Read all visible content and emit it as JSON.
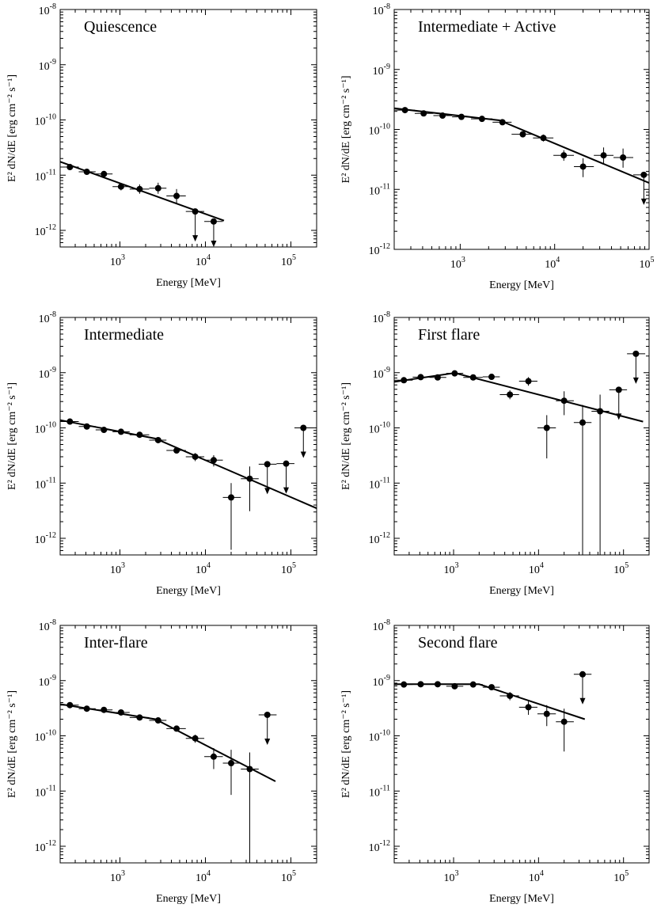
{
  "chart_data": [
    {
      "type": "scatter",
      "title": "Quiescence",
      "xlabel": "Energy [MeV]",
      "ylabel": "E² dN/dE [erg cm⁻² s⁻¹]",
      "xscale": "log",
      "yscale": "log",
      "xlim": [
        200,
        200000
      ],
      "ylim": [
        5e-13,
        1e-08
      ],
      "x_ticks": [
        {
          "base": "10",
          "exp": "3"
        },
        {
          "base": "10",
          "exp": "4"
        },
        {
          "base": "10",
          "exp": "5"
        }
      ],
      "y_ticks": [
        {
          "base": "10",
          "exp": "-12"
        },
        {
          "base": "10",
          "exp": "-11"
        },
        {
          "base": "10",
          "exp": "-10"
        },
        {
          "base": "10",
          "exp": "-9"
        },
        {
          "base": "10",
          "exp": "-8"
        }
      ],
      "points": [
        {
          "x": 260,
          "y": 1.4e-11,
          "xlo": 200,
          "xhi": 330,
          "ylo": 1.25e-11,
          "yhi": 1.55e-11,
          "ul": false
        },
        {
          "x": 410,
          "y": 1.15e-11,
          "xlo": 330,
          "xhi": 520,
          "ylo": 1.05e-11,
          "yhi": 1.25e-11,
          "ul": false
        },
        {
          "x": 650,
          "y": 1.05e-11,
          "xlo": 520,
          "xhi": 820,
          "ylo": 9.5e-12,
          "yhi": 1.15e-11,
          "ul": false
        },
        {
          "x": 1030,
          "y": 6.2e-12,
          "xlo": 820,
          "xhi": 1300,
          "ylo": 5.3e-12,
          "yhi": 7.2e-12,
          "ul": false
        },
        {
          "x": 1700,
          "y": 5.6e-12,
          "xlo": 1300,
          "xhi": 2200,
          "ylo": 4.6e-12,
          "yhi": 6.8e-12,
          "ul": false
        },
        {
          "x": 2800,
          "y": 5.8e-12,
          "xlo": 2200,
          "xhi": 3500,
          "ylo": 4.6e-12,
          "yhi": 7.3e-12,
          "ul": false
        },
        {
          "x": 4600,
          "y": 4.2e-12,
          "xlo": 3500,
          "xhi": 5900,
          "ylo": 3.1e-12,
          "yhi": 5.6e-12,
          "ul": false
        },
        {
          "x": 7600,
          "y": 2.2e-12,
          "xlo": 5900,
          "xhi": 9700,
          "ul": true
        },
        {
          "x": 12500,
          "y": 1.45e-12,
          "xlo": 9700,
          "xhi": 16000,
          "ul": true
        }
      ],
      "model": [
        [
          200,
          1.75e-11
        ],
        [
          16500,
          1.5e-12
        ]
      ]
    },
    {
      "type": "scatter",
      "title": "Intermediate + Active",
      "xlabel": "Energy [MeV]",
      "ylabel": "E² dN/dE [erg cm⁻² s⁻¹]",
      "xscale": "log",
      "yscale": "log",
      "xlim": [
        200,
        100000
      ],
      "ylim": [
        1e-12,
        1e-08
      ],
      "x_ticks": [
        {
          "base": "10",
          "exp": "3"
        },
        {
          "base": "10",
          "exp": "4"
        },
        {
          "base": "10",
          "exp": "5"
        }
      ],
      "y_ticks": [
        {
          "base": "10",
          "exp": "-12"
        },
        {
          "base": "10",
          "exp": "-11"
        },
        {
          "base": "10",
          "exp": "-10"
        },
        {
          "base": "10",
          "exp": "-9"
        },
        {
          "base": "10",
          "exp": "-8"
        }
      ],
      "points": [
        {
          "x": 260,
          "y": 2.1e-10,
          "xlo": 200,
          "xhi": 330,
          "ylo": 2e-10,
          "yhi": 2.2e-10,
          "ul": false
        },
        {
          "x": 410,
          "y": 1.85e-10,
          "xlo": 330,
          "xhi": 520,
          "ylo": 1.75e-10,
          "yhi": 1.95e-10,
          "ul": false
        },
        {
          "x": 650,
          "y": 1.7e-10,
          "xlo": 520,
          "xhi": 820,
          "ylo": 1.6e-10,
          "yhi": 1.8e-10,
          "ul": false
        },
        {
          "x": 1030,
          "y": 1.62e-10,
          "xlo": 820,
          "xhi": 1300,
          "ylo": 1.52e-10,
          "yhi": 1.72e-10,
          "ul": false
        },
        {
          "x": 1700,
          "y": 1.5e-10,
          "xlo": 1300,
          "xhi": 2200,
          "ylo": 1.4e-10,
          "yhi": 1.6e-10,
          "ul": false
        },
        {
          "x": 2800,
          "y": 1.32e-10,
          "xlo": 2200,
          "xhi": 3500,
          "ylo": 1.2e-10,
          "yhi": 1.45e-10,
          "ul": false
        },
        {
          "x": 4600,
          "y": 8.3e-11,
          "xlo": 3500,
          "xhi": 5900,
          "ylo": 7.5e-11,
          "yhi": 9.2e-11,
          "ul": false
        },
        {
          "x": 7600,
          "y": 7.2e-11,
          "xlo": 5900,
          "xhi": 9700,
          "ylo": 6.3e-11,
          "yhi": 8.2e-11,
          "ul": false
        },
        {
          "x": 12500,
          "y": 3.7e-11,
          "xlo": 9700,
          "xhi": 16000,
          "ylo": 3e-11,
          "yhi": 4.5e-11,
          "ul": false
        },
        {
          "x": 20000,
          "y": 2.4e-11,
          "xlo": 16000,
          "xhi": 26000,
          "ylo": 1.6e-11,
          "yhi": 3.3e-11,
          "ul": false
        },
        {
          "x": 33000,
          "y": 3.7e-11,
          "xlo": 26000,
          "xhi": 42000,
          "ylo": 2.7e-11,
          "yhi": 5e-11,
          "ul": false
        },
        {
          "x": 53000,
          "y": 3.4e-11,
          "xlo": 42000,
          "xhi": 68000,
          "ylo": 2.3e-11,
          "yhi": 4.8e-11,
          "ul": false
        },
        {
          "x": 88000,
          "y": 1.75e-11,
          "xlo": 68000,
          "xhi": 100000,
          "ul": true
        }
      ],
      "model": [
        [
          200,
          2.25e-10
        ],
        [
          2600,
          1.42e-10
        ],
        [
          100000,
          1.28e-11
        ]
      ]
    },
    {
      "type": "scatter",
      "title": "Intermediate",
      "xlabel": "Energy [MeV]",
      "ylabel": "E² dN/dE [erg cm⁻² s⁻¹]",
      "xscale": "log",
      "yscale": "log",
      "xlim": [
        200,
        200000
      ],
      "ylim": [
        5e-13,
        1e-08
      ],
      "x_ticks": [
        {
          "base": "10",
          "exp": "3"
        },
        {
          "base": "10",
          "exp": "4"
        },
        {
          "base": "10",
          "exp": "5"
        }
      ],
      "y_ticks": [
        {
          "base": "10",
          "exp": "-12"
        },
        {
          "base": "10",
          "exp": "-11"
        },
        {
          "base": "10",
          "exp": "-10"
        },
        {
          "base": "10",
          "exp": "-9"
        },
        {
          "base": "10",
          "exp": "-8"
        }
      ],
      "points": [
        {
          "x": 260,
          "y": 1.3e-10,
          "xlo": 200,
          "xhi": 330,
          "ylo": 1.22e-10,
          "yhi": 1.38e-10,
          "ul": false
        },
        {
          "x": 410,
          "y": 1.06e-10,
          "xlo": 330,
          "xhi": 520,
          "ylo": 1e-10,
          "yhi": 1.12e-10,
          "ul": false
        },
        {
          "x": 650,
          "y": 9.2e-11,
          "xlo": 520,
          "xhi": 820,
          "ylo": 8.7e-11,
          "yhi": 9.7e-11,
          "ul": false
        },
        {
          "x": 1030,
          "y": 8.5e-11,
          "xlo": 820,
          "xhi": 1300,
          "ylo": 8e-11,
          "yhi": 9e-11,
          "ul": false
        },
        {
          "x": 1700,
          "y": 7.5e-11,
          "xlo": 1300,
          "xhi": 2200,
          "ylo": 7e-11,
          "yhi": 8e-11,
          "ul": false
        },
        {
          "x": 2800,
          "y": 6e-11,
          "xlo": 2200,
          "xhi": 3500,
          "ylo": 5.5e-11,
          "yhi": 6.5e-11,
          "ul": false
        },
        {
          "x": 4600,
          "y": 3.9e-11,
          "xlo": 3500,
          "xhi": 5900,
          "ylo": 3.5e-11,
          "yhi": 4.3e-11,
          "ul": false
        },
        {
          "x": 7600,
          "y": 3e-11,
          "xlo": 5900,
          "xhi": 9700,
          "ylo": 2.5e-11,
          "yhi": 3.5e-11,
          "ul": false
        },
        {
          "x": 12500,
          "y": 2.6e-11,
          "xlo": 9700,
          "xhi": 16000,
          "ylo": 2e-11,
          "yhi": 3.2e-11,
          "ul": false
        },
        {
          "x": 20000,
          "y": 5.5e-12,
          "xlo": 16000,
          "xhi": 26000,
          "ylo": 6.2e-13,
          "yhi": 1e-11,
          "ul": false
        },
        {
          "x": 33000,
          "y": 1.2e-11,
          "xlo": 26000,
          "xhi": 42000,
          "ylo": 3.1e-12,
          "yhi": 2e-11,
          "ul": false
        },
        {
          "x": 53000,
          "y": 2.2e-11,
          "xlo": 42000,
          "xhi": 68000,
          "ul": true
        },
        {
          "x": 88000,
          "y": 2.25e-11,
          "xlo": 68000,
          "xhi": 110000,
          "ul": true
        },
        {
          "x": 140000,
          "y": 1e-10,
          "xlo": 110000,
          "xhi": 180000,
          "ul": true
        }
      ],
      "model": [
        [
          200,
          1.38e-10
        ],
        [
          2600,
          6.4e-11
        ],
        [
          200000,
          3.5e-12
        ]
      ]
    },
    {
      "type": "scatter",
      "title": "First flare",
      "xlabel": "Energy [MeV]",
      "ylabel": "E² dN/dE [erg cm⁻² s⁻¹]",
      "xscale": "log",
      "yscale": "log",
      "xlim": [
        200,
        200000
      ],
      "ylim": [
        5e-13,
        1e-08
      ],
      "x_ticks": [
        {
          "base": "10",
          "exp": "3"
        },
        {
          "base": "10",
          "exp": "4"
        },
        {
          "base": "10",
          "exp": "5"
        }
      ],
      "y_ticks": [
        {
          "base": "10",
          "exp": "-12"
        },
        {
          "base": "10",
          "exp": "-11"
        },
        {
          "base": "10",
          "exp": "-10"
        },
        {
          "base": "10",
          "exp": "-9"
        },
        {
          "base": "10",
          "exp": "-8"
        }
      ],
      "points": [
        {
          "x": 260,
          "y": 7.3e-10,
          "xlo": 200,
          "xhi": 330,
          "ylo": 6.8e-10,
          "yhi": 7.8e-10,
          "ul": false
        },
        {
          "x": 410,
          "y": 8.3e-10,
          "xlo": 330,
          "xhi": 520,
          "ylo": 7.7e-10,
          "yhi": 8.9e-10,
          "ul": false
        },
        {
          "x": 650,
          "y": 8.2e-10,
          "xlo": 520,
          "xhi": 820,
          "ylo": 7.6e-10,
          "yhi": 8.8e-10,
          "ul": false
        },
        {
          "x": 1030,
          "y": 9.7e-10,
          "xlo": 820,
          "xhi": 1300,
          "ylo": 9e-10,
          "yhi": 1.04e-09,
          "ul": false
        },
        {
          "x": 1700,
          "y": 8.2e-10,
          "xlo": 1300,
          "xhi": 2200,
          "ylo": 7.6e-10,
          "yhi": 8.8e-10,
          "ul": false
        },
        {
          "x": 2800,
          "y": 8.4e-10,
          "xlo": 2200,
          "xhi": 3500,
          "ylo": 7.7e-10,
          "yhi": 9.1e-10,
          "ul": false
        },
        {
          "x": 4600,
          "y": 4e-10,
          "xlo": 3500,
          "xhi": 5900,
          "ylo": 3.3e-10,
          "yhi": 4.8e-10,
          "ul": false
        },
        {
          "x": 7600,
          "y": 7e-10,
          "xlo": 5900,
          "xhi": 9700,
          "ylo": 5.8e-10,
          "yhi": 8.3e-10,
          "ul": false
        },
        {
          "x": 12500,
          "y": 1e-10,
          "xlo": 9700,
          "xhi": 16000,
          "ylo": 2.8e-11,
          "yhi": 1.7e-10,
          "ul": false
        },
        {
          "x": 20000,
          "y": 3.1e-10,
          "xlo": 16000,
          "xhi": 26000,
          "ylo": 1.7e-10,
          "yhi": 4.6e-10,
          "ul": false
        },
        {
          "x": 33000,
          "y": 1.25e-10,
          "xlo": 26000,
          "xhi": 42000,
          "ylo": 5e-13,
          "yhi": 2.6e-10,
          "ul": false
        },
        {
          "x": 53000,
          "y": 2e-10,
          "xlo": 42000,
          "xhi": 68000,
          "ylo": 5e-13,
          "yhi": 4e-10,
          "ul": false
        },
        {
          "x": 88000,
          "y": 4.9e-10,
          "xlo": 68000,
          "xhi": 110000,
          "ul": true
        },
        {
          "x": 140000,
          "y": 2.2e-09,
          "xlo": 110000,
          "xhi": 180000,
          "ul": true
        }
      ],
      "model": [
        [
          200,
          6.8e-10
        ],
        [
          1030,
          9.9e-10
        ],
        [
          170000,
          1.3e-10
        ]
      ]
    },
    {
      "type": "scatter",
      "title": "Inter-flare",
      "xlabel": "Energy [MeV]",
      "ylabel": "E² dN/dE [erg cm⁻² s⁻¹]",
      "xscale": "log",
      "yscale": "log",
      "xlim": [
        200,
        200000
      ],
      "ylim": [
        5e-13,
        1e-08
      ],
      "x_ticks": [
        {
          "base": "10",
          "exp": "3"
        },
        {
          "base": "10",
          "exp": "4"
        },
        {
          "base": "10",
          "exp": "5"
        }
      ],
      "y_ticks": [
        {
          "base": "10",
          "exp": "-12"
        },
        {
          "base": "10",
          "exp": "-11"
        },
        {
          "base": "10",
          "exp": "-10"
        },
        {
          "base": "10",
          "exp": "-9"
        },
        {
          "base": "10",
          "exp": "-8"
        }
      ],
      "points": [
        {
          "x": 260,
          "y": 3.6e-10,
          "xlo": 200,
          "xhi": 330,
          "ylo": 3.4e-10,
          "yhi": 3.8e-10,
          "ul": false
        },
        {
          "x": 410,
          "y": 3.1e-10,
          "xlo": 330,
          "xhi": 520,
          "ylo": 2.9e-10,
          "yhi": 3.3e-10,
          "ul": false
        },
        {
          "x": 650,
          "y": 2.95e-10,
          "xlo": 520,
          "xhi": 820,
          "ylo": 2.75e-10,
          "yhi": 3.15e-10,
          "ul": false
        },
        {
          "x": 1030,
          "y": 2.65e-10,
          "xlo": 820,
          "xhi": 1300,
          "ylo": 2.5e-10,
          "yhi": 2.8e-10,
          "ul": false
        },
        {
          "x": 1700,
          "y": 2.15e-10,
          "xlo": 1300,
          "xhi": 2200,
          "ylo": 2e-10,
          "yhi": 2.3e-10,
          "ul": false
        },
        {
          "x": 2800,
          "y": 1.9e-10,
          "xlo": 2200,
          "xhi": 3500,
          "ylo": 1.75e-10,
          "yhi": 2.05e-10,
          "ul": false
        },
        {
          "x": 4600,
          "y": 1.35e-10,
          "xlo": 3500,
          "xhi": 5900,
          "ylo": 1.2e-10,
          "yhi": 1.5e-10,
          "ul": false
        },
        {
          "x": 7600,
          "y": 9e-11,
          "xlo": 5900,
          "xhi": 9700,
          "ylo": 7.5e-11,
          "yhi": 1.05e-10,
          "ul": false
        },
        {
          "x": 12500,
          "y": 4.2e-11,
          "xlo": 9700,
          "xhi": 16000,
          "ylo": 2.5e-11,
          "yhi": 6e-11,
          "ul": false
        },
        {
          "x": 20000,
          "y": 3.2e-11,
          "xlo": 16000,
          "xhi": 26000,
          "ylo": 8.5e-12,
          "yhi": 5.6e-11,
          "ul": false
        },
        {
          "x": 33000,
          "y": 2.5e-11,
          "xlo": 26000,
          "xhi": 42000,
          "ylo": 5e-13,
          "yhi": 5e-11,
          "ul": false
        },
        {
          "x": 53000,
          "y": 2.4e-10,
          "xlo": 42000,
          "xhi": 68000,
          "ul": true
        }
      ],
      "model": [
        [
          200,
          3.75e-10
        ],
        [
          2600,
          2e-10
        ],
        [
          66000,
          1.5e-11
        ]
      ]
    },
    {
      "type": "scatter",
      "title": "Second flare",
      "xlabel": "Energy [MeV]",
      "ylabel": "E² dN/dE [erg cm⁻² s⁻¹]",
      "xscale": "log",
      "yscale": "log",
      "xlim": [
        200,
        200000
      ],
      "ylim": [
        5e-13,
        1e-08
      ],
      "x_ticks": [
        {
          "base": "10",
          "exp": "3"
        },
        {
          "base": "10",
          "exp": "4"
        },
        {
          "base": "10",
          "exp": "5"
        }
      ],
      "y_ticks": [
        {
          "base": "10",
          "exp": "-12"
        },
        {
          "base": "10",
          "exp": "-11"
        },
        {
          "base": "10",
          "exp": "-10"
        },
        {
          "base": "10",
          "exp": "-9"
        },
        {
          "base": "10",
          "exp": "-8"
        }
      ],
      "points": [
        {
          "x": 260,
          "y": 8.5e-10,
          "xlo": 200,
          "xhi": 330,
          "ylo": 8e-10,
          "yhi": 9e-10,
          "ul": false
        },
        {
          "x": 410,
          "y": 8.6e-10,
          "xlo": 330,
          "xhi": 520,
          "ylo": 8.1e-10,
          "yhi": 9.1e-10,
          "ul": false
        },
        {
          "x": 650,
          "y": 8.6e-10,
          "xlo": 520,
          "xhi": 820,
          "ylo": 8.1e-10,
          "yhi": 9.1e-10,
          "ul": false
        },
        {
          "x": 1030,
          "y": 7.9e-10,
          "xlo": 820,
          "xhi": 1300,
          "ylo": 7.3e-10,
          "yhi": 8.5e-10,
          "ul": false
        },
        {
          "x": 1700,
          "y": 8.5e-10,
          "xlo": 1300,
          "xhi": 2200,
          "ylo": 7.9e-10,
          "yhi": 9.1e-10,
          "ul": false
        },
        {
          "x": 2800,
          "y": 7.6e-10,
          "xlo": 2200,
          "xhi": 3500,
          "ylo": 6.9e-10,
          "yhi": 8.3e-10,
          "ul": false
        },
        {
          "x": 4600,
          "y": 5.3e-10,
          "xlo": 3500,
          "xhi": 5900,
          "ylo": 4.4e-10,
          "yhi": 6.2e-10,
          "ul": false
        },
        {
          "x": 7600,
          "y": 3.3e-10,
          "xlo": 5900,
          "xhi": 9700,
          "ylo": 2.4e-10,
          "yhi": 4.2e-10,
          "ul": false
        },
        {
          "x": 12500,
          "y": 2.5e-10,
          "xlo": 9700,
          "xhi": 16000,
          "ylo": 1.5e-10,
          "yhi": 3.6e-10,
          "ul": false
        },
        {
          "x": 20000,
          "y": 1.8e-10,
          "xlo": 16000,
          "xhi": 26000,
          "ylo": 5.2e-11,
          "yhi": 3.1e-10,
          "ul": false
        },
        {
          "x": 33000,
          "y": 1.3e-09,
          "xlo": 26000,
          "xhi": 42000,
          "ul": true
        }
      ],
      "model": [
        [
          200,
          8.6e-10
        ],
        [
          2000,
          8.6e-10
        ],
        [
          35000,
          2e-10
        ]
      ]
    }
  ]
}
